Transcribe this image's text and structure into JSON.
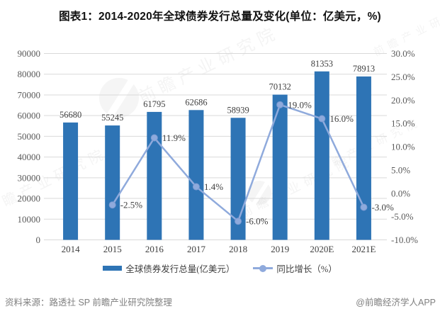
{
  "title": "图表1：2014-2020年全球债券发行总量及变化(单位：亿美元，%)",
  "chart_data": {
    "type": "bar",
    "subtype": "bar-line-combo",
    "categories": [
      "2014",
      "2015",
      "2016",
      "2017",
      "2018",
      "2019",
      "2020E",
      "2021E"
    ],
    "series": [
      {
        "name": "全球债券发行总量(亿美元）",
        "type": "bar",
        "axis": "left",
        "color": "#2E74B5",
        "values": [
          56680,
          55245,
          61795,
          62686,
          58939,
          70132,
          81353,
          78913
        ],
        "value_labels": [
          "56680",
          "55245",
          "61795",
          "62686",
          "58939",
          "70132",
          "81353",
          "78913"
        ]
      },
      {
        "name": "同比增长（%）",
        "type": "line",
        "axis": "right",
        "color": "#8FAADC",
        "marker_stroke": "#7B9BD2",
        "values": [
          null,
          -2.5,
          11.9,
          1.4,
          -6.0,
          19.0,
          16.0,
          -3.0
        ],
        "value_labels": [
          null,
          "-2.5%",
          "11.9%",
          "1.4%",
          "-6.0%",
          "19.0%",
          "16.0%",
          "-3.0%"
        ]
      }
    ],
    "left_axis": {
      "min": 0,
      "max": 90000,
      "step": 10000,
      "tick_labels": [
        "0",
        "10000",
        "20000",
        "30000",
        "40000",
        "50000",
        "60000",
        "70000",
        "80000",
        "90000"
      ]
    },
    "right_axis": {
      "min": -10,
      "max": 30,
      "step": 5,
      "tick_labels": [
        "-10.0%",
        "-5.0%",
        "0.0%",
        "5.0%",
        "10.0%",
        "15.0%",
        "20.0%",
        "25.0%",
        "30.0%"
      ]
    },
    "grid": true,
    "grid_color": "#D9D9D9",
    "axis_text_color": "#595959",
    "label_text_color": "#404040",
    "legend_position": "bottom"
  },
  "legend": {
    "items": [
      {
        "label": "全球债券发行总量(亿美元）"
      },
      {
        "label": "同比增长（%）"
      }
    ]
  },
  "footer": {
    "source": "资料来源：路透社 SP 前瞻产业研究院整理",
    "brand": "@前瞻经济学人APP"
  },
  "watermark": {
    "text": "前瞻产业研究院"
  }
}
